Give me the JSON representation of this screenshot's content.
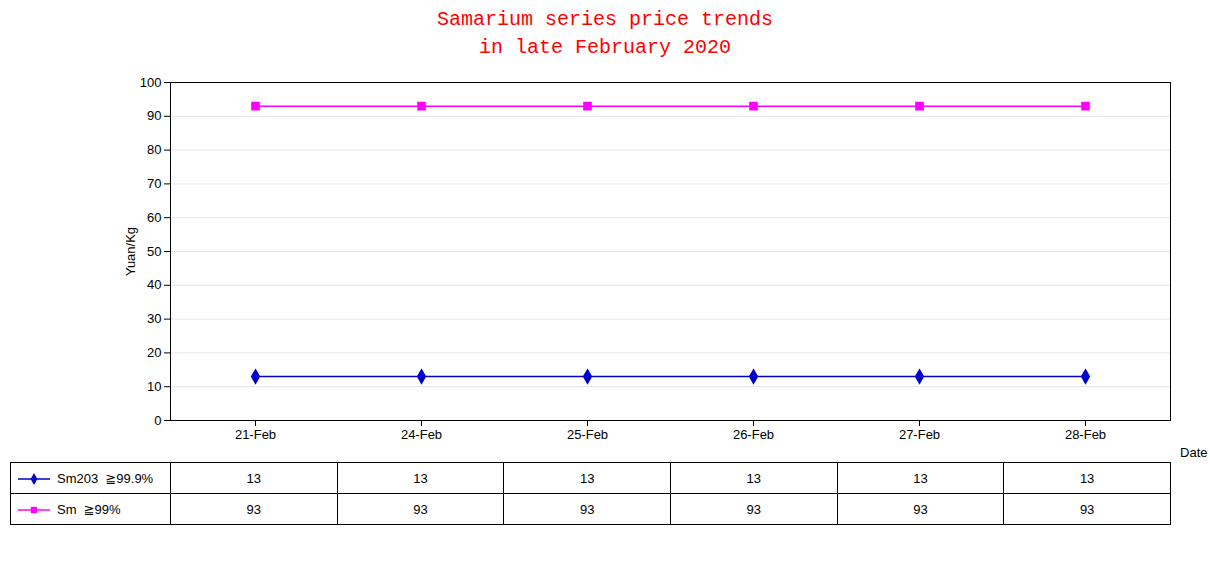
{
  "chart_data": {
    "type": "line",
    "title": "Samarium series price trends",
    "subtitle": "in late February 2020",
    "xlabel": "Date",
    "ylabel": "Yuan/Kg",
    "categories": [
      "21-Feb",
      "24-Feb",
      "25-Feb",
      "26-Feb",
      "27-Feb",
      "28-Feb"
    ],
    "series": [
      {
        "name": "Sm203  ≧99.9%",
        "color": "#0000CD",
        "marker": "diamond",
        "values": [
          13,
          13,
          13,
          13,
          13,
          13
        ]
      },
      {
        "name": "Sm  ≧99%",
        "color": "#FF00FF",
        "marker": "square",
        "values": [
          93,
          93,
          93,
          93,
          93,
          93
        ]
      }
    ],
    "ylim": [
      0,
      100
    ],
    "yticks": [
      0,
      10,
      20,
      30,
      40,
      50,
      60,
      70,
      80,
      90,
      100
    ],
    "grid": true,
    "legend": "bottom"
  }
}
